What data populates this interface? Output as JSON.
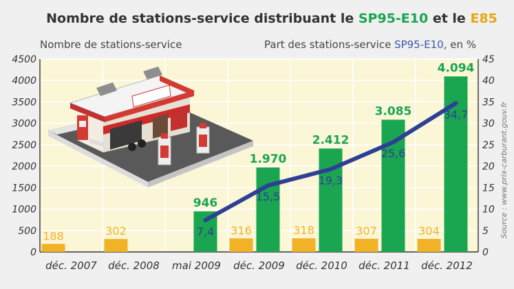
{
  "title": {
    "prefix": "Nombre de stations-service distribuant le ",
    "highlight1": "SP95-E10",
    "middle": " et le ",
    "highlight2": "E85"
  },
  "left_axis_label": "Nombre de stations-service",
  "right_axis_label": {
    "prefix": "Part des stations-service ",
    "highlight": "SP95-E10",
    "suffix": ", en %"
  },
  "source": "Source : www.prix-carburant.gouv.fr",
  "colors": {
    "sp95_e10": "#1aa551",
    "e85": "#f2b228",
    "share_line": "#2e3f96",
    "plot_bg": "#fbf6d6",
    "grid": "#ffffff",
    "title_green": "#1aa551",
    "title_orange": "#e8a713",
    "right_label_blue": "#3b55a6",
    "frame_bg": "#f0f0f0"
  },
  "chart_data": {
    "type": "bar",
    "categories": [
      "déc. 2007",
      "déc. 2008",
      "mai 2009",
      "déc. 2009",
      "déc. 2010",
      "déc. 2011",
      "déc. 2012"
    ],
    "left_ticks": [
      "0",
      "500",
      "1000",
      "1500",
      "2000",
      "2500",
      "3000",
      "3500",
      "4000",
      "4500"
    ],
    "right_ticks": [
      "0",
      "5",
      "10",
      "15",
      "20",
      "25",
      "30",
      "35",
      "40",
      "45"
    ],
    "ylim": [
      0,
      4500
    ],
    "y2lim": [
      0,
      45
    ],
    "grid": true,
    "series": [
      {
        "key": "e85",
        "values": [
          188,
          302,
          null,
          316,
          318,
          307,
          304
        ],
        "labels": [
          "188",
          "302",
          "",
          "316",
          "318",
          "307",
          "304"
        ]
      },
      {
        "key": "sp95_e10",
        "values": [
          null,
          null,
          946,
          1970,
          2412,
          3085,
          4094
        ],
        "labels": [
          "",
          "",
          "946",
          "1.970",
          "2.412",
          "3.085",
          "4.094"
        ]
      },
      {
        "key": "share",
        "axis": "right",
        "type": "line",
        "values": [
          null,
          null,
          7.4,
          15.5,
          19.3,
          25.6,
          34.7
        ],
        "labels": [
          "",
          "",
          "7,4",
          "15,5",
          "19,3",
          "25,6",
          "34,7"
        ]
      }
    ]
  }
}
